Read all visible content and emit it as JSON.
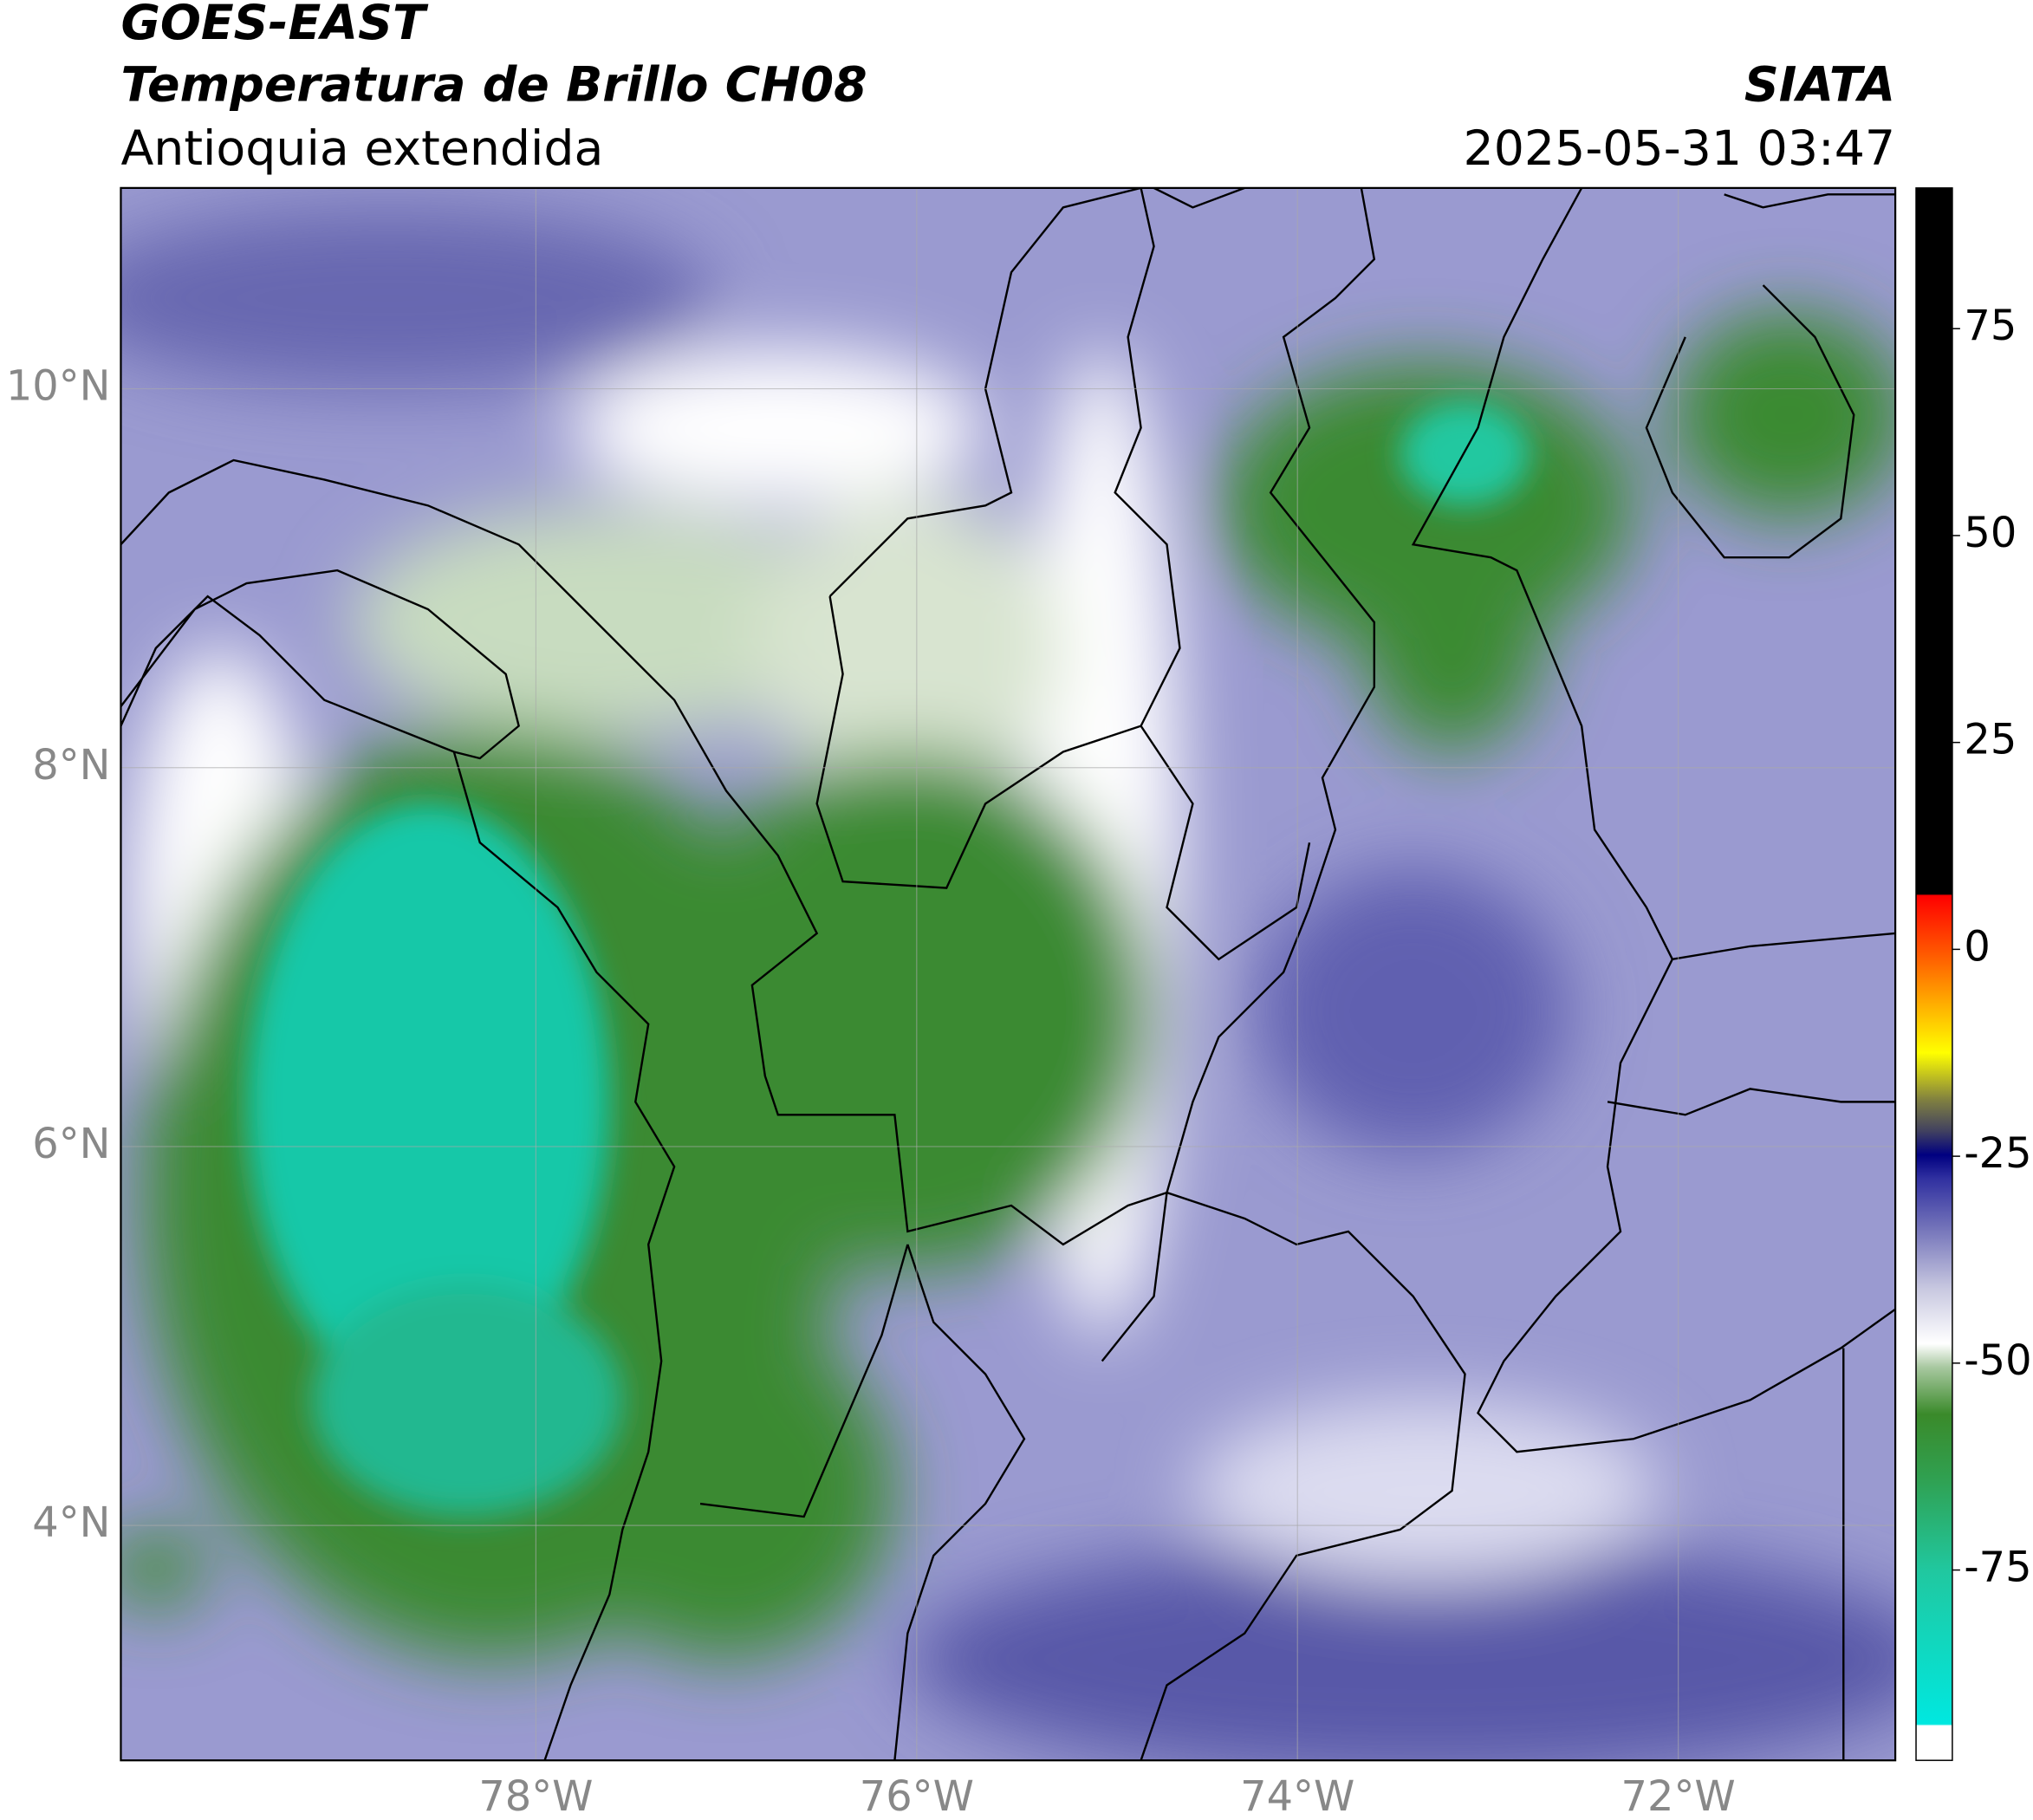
{
  "header": {
    "title": "GOES-EAST",
    "subtitle": "Temperatura de Brillo CH08",
    "region": "Antioquia extendida",
    "source": "SIATA",
    "datetime": "2025-05-31 03:47"
  },
  "map": {
    "xlim": [
      -80.18,
      -70.86
    ],
    "ylim": [
      2.76,
      11.06
    ],
    "xticks": [
      {
        "value": -78,
        "label": "78°W"
      },
      {
        "value": -76,
        "label": "76°W"
      },
      {
        "value": -74,
        "label": "74°W"
      },
      {
        "value": -72,
        "label": "72°W"
      }
    ],
    "yticks": [
      {
        "value": 4,
        "label": "4°N"
      },
      {
        "value": 6,
        "label": "6°N"
      },
      {
        "value": 8,
        "label": "8°N"
      },
      {
        "value": 10,
        "label": "10°N"
      }
    ]
  },
  "colorbar": {
    "lim": [
      -98,
      92
    ],
    "ticks": [
      -75,
      -50,
      -25,
      0,
      25,
      50,
      75
    ]
  }
}
